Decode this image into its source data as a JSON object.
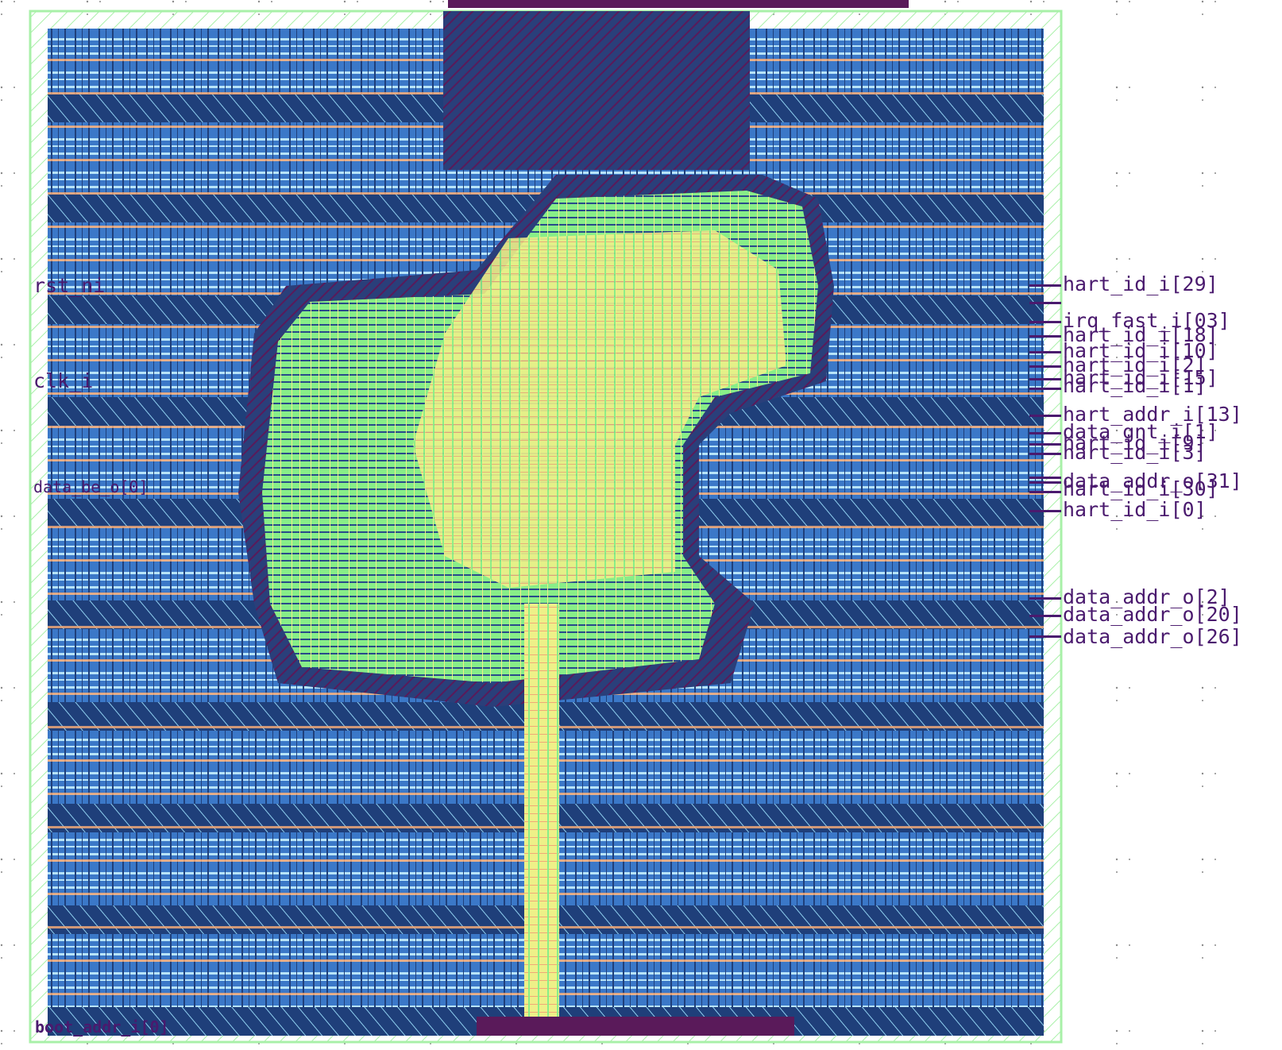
{
  "view": {
    "background": "#ffffff",
    "grid_dot_color": "#8a8a8a"
  },
  "layers": {
    "boundary": "#a8f0a8",
    "core_fill": "#3b78c8",
    "core_dark": "#1f3f7a",
    "cell_stripe": "#b8e4f8",
    "power_rail": "#f0a878",
    "dense_metal": "#5a1a5a",
    "route_green": "#88ee88",
    "route_yellow": "#eef088",
    "pin_text": "#4a1a6e"
  },
  "pins": {
    "left": {
      "rst": "rst_ni",
      "clk": "clk_i",
      "data_be": "data_be_o[0]",
      "boot_addr": "boot_addr_i[0]"
    },
    "right": {
      "hart_id_29": "hart_id_i[29]",
      "irq_fast_03": "irq_fast_i[03]",
      "hart_id_a": "hart_id_i[18]",
      "hart_id_b": "hart_id_i[10]",
      "hart_id_c": "hart_id_i[2]",
      "hart_id_d": "hart_id_i[15]",
      "hart_id_e": "hart_id_i[1]",
      "hart_addr": "hart_addr_i[13]",
      "data_gnt": "data_gnt_i[1]",
      "hart_id_f": "hart_id_i[9]",
      "hart_id_g": "hart_id_i[3]",
      "data_addr_31": "data_addr_o[31]",
      "hart_id_h": "hart_id_i[30]",
      "hart_id_0": "hart_id_i[0]",
      "data_addr_2": "data_addr_o[2]",
      "data_addr_20": "data_addr_o[20]",
      "data_addr_26": "data_addr_o[26]"
    }
  }
}
